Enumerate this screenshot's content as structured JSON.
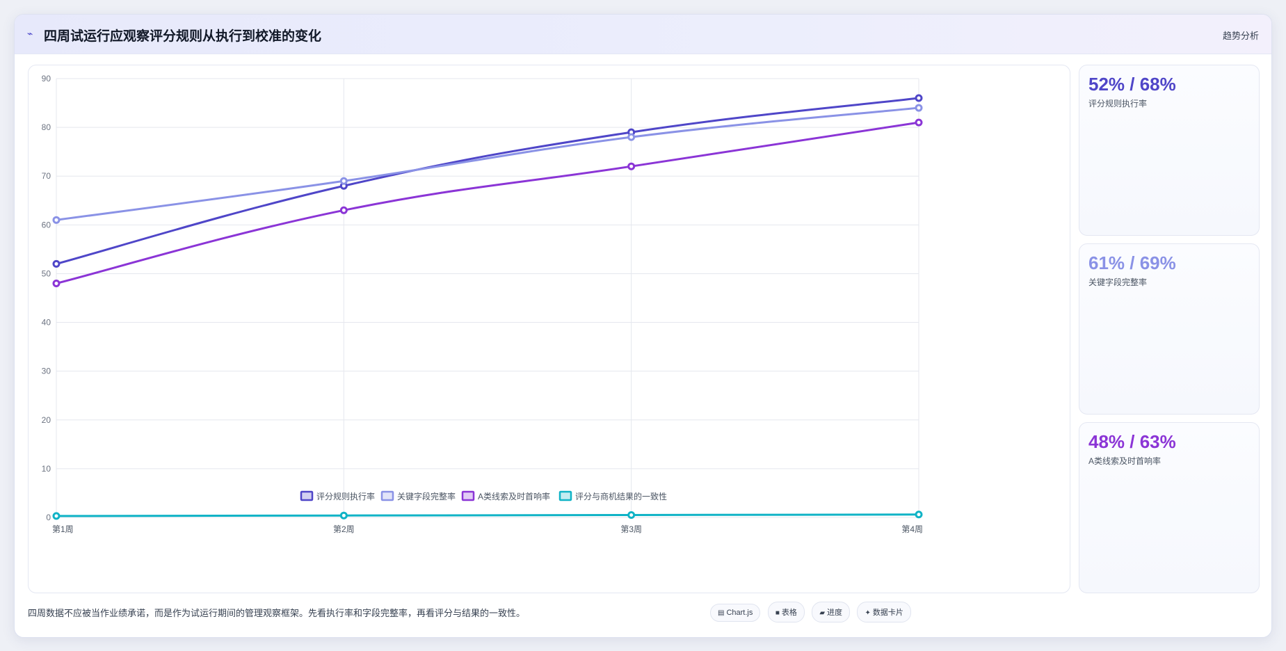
{
  "header": {
    "icon": "trend-line-icon",
    "title": "四周试运行应观察评分规则从执行到校准的变化",
    "badge": "趋势分析"
  },
  "chart_data": {
    "type": "line",
    "categories": [
      "第1周",
      "第2周",
      "第3周",
      "第4周"
    ],
    "ylim": [
      0,
      90
    ],
    "yticks": [
      0,
      10,
      20,
      30,
      40,
      50,
      60,
      70,
      80,
      90
    ],
    "grid": true,
    "legend_position": "bottom",
    "series": [
      {
        "name": "评分规则执行率",
        "values": [
          52,
          68,
          79,
          86
        ],
        "color": "#4f46c8"
      },
      {
        "name": "关键字段完整率",
        "values": [
          61,
          69,
          78,
          84
        ],
        "color": "#8a92e6"
      },
      {
        "name": "A类线索及时首响率",
        "values": [
          48,
          63,
          72,
          81
        ],
        "color": "#8b35d6"
      },
      {
        "name": "评分与商机结果的一致性",
        "values": [
          0.3,
          0.4,
          0.5,
          0.6
        ],
        "color": "#10b3c6"
      }
    ]
  },
  "side_cards": [
    {
      "value": "52% / 68%",
      "label": "评分规则执行率",
      "color": "#4f46c8"
    },
    {
      "value": "61% / 69%",
      "label": "关键字段完整率",
      "color": "#8a92e6"
    },
    {
      "value": "48% / 63%",
      "label": "A类线索及时首响率",
      "color": "#8b35d6"
    }
  ],
  "footer": {
    "note": "四周数据不应被当作业绩承诺，而是作为试运行期间的管理观察框架。先看执行率和字段完整率，再看评分与结果的一致性。",
    "chips": [
      {
        "icon": "chart-icon",
        "glyph": "▤",
        "label": "Chart.js"
      },
      {
        "icon": "table-icon",
        "glyph": "■",
        "label": "表格"
      },
      {
        "icon": "progress-icon",
        "glyph": "▰",
        "label": "进度"
      },
      {
        "icon": "sparkle-icon",
        "glyph": "✦",
        "label": "数据卡片"
      }
    ]
  }
}
